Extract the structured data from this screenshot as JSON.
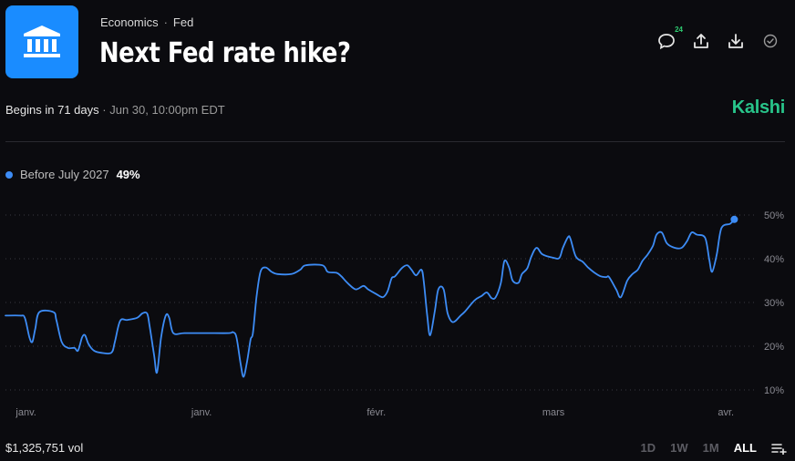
{
  "header": {
    "category": "Economics",
    "separator": "·",
    "subcategory": "Fed",
    "title": "Next Fed rate hike?",
    "comment_count": "24"
  },
  "meta": {
    "begins": "Begins in 71 days",
    "dot": "·",
    "date": "Jun 30, 10:00pm EDT"
  },
  "brand": "Kalshi",
  "legend": {
    "name": "Before July 2027",
    "value": "49%"
  },
  "footer": {
    "volume": "$1,325,751 vol",
    "ranges": [
      "1D",
      "1W",
      "1M",
      "ALL"
    ],
    "active_range": "ALL"
  },
  "colors": {
    "series": "#3d8cf5",
    "brand": "#28c48a",
    "logo_bg": "#1a8cff"
  },
  "chart_data": {
    "type": "line",
    "title": "Next Fed rate hike?",
    "series": [
      {
        "name": "Before July 2027",
        "color": "#3d8cf5",
        "last": 49,
        "points": [
          [
            0,
            27
          ],
          [
            2.5,
            27
          ],
          [
            3.3,
            26.5
          ],
          [
            4.1,
            22
          ],
          [
            4.6,
            21
          ],
          [
            5.1,
            24
          ],
          [
            5.8,
            27.8
          ],
          [
            8.2,
            27.8
          ],
          [
            8.7,
            26
          ],
          [
            9.6,
            21
          ],
          [
            10.7,
            19.6
          ],
          [
            11.8,
            19.6
          ],
          [
            12.4,
            19
          ],
          [
            13.1,
            22
          ],
          [
            13.6,
            22.5
          ],
          [
            14.2,
            20.5
          ],
          [
            15.1,
            19
          ],
          [
            16.3,
            18.5
          ],
          [
            18.1,
            18.5
          ],
          [
            18.7,
            21
          ],
          [
            19.6,
            25.8
          ],
          [
            20.8,
            26
          ],
          [
            22.5,
            26.5
          ],
          [
            23.4,
            27.5
          ],
          [
            24.2,
            27.5
          ],
          [
            24.6,
            25
          ],
          [
            25.4,
            18
          ],
          [
            25.9,
            14
          ],
          [
            26.6,
            22
          ],
          [
            27.4,
            27
          ],
          [
            28,
            26.5
          ],
          [
            28.7,
            23
          ],
          [
            30.6,
            23
          ],
          [
            34.3,
            23
          ],
          [
            38.2,
            23
          ],
          [
            38.9,
            23.2
          ],
          [
            39.5,
            22
          ],
          [
            40.2,
            16
          ],
          [
            40.7,
            13
          ],
          [
            41.3,
            16.5
          ],
          [
            41.9,
            21.5
          ],
          [
            42.3,
            23
          ],
          [
            42.9,
            31
          ],
          [
            43.6,
            37
          ],
          [
            44.5,
            38
          ],
          [
            45.5,
            37
          ],
          [
            46.5,
            36.5
          ],
          [
            48.9,
            36.5
          ],
          [
            50.4,
            37.5
          ],
          [
            51.3,
            38.5
          ],
          [
            54.2,
            38.5
          ],
          [
            55.1,
            37
          ],
          [
            56.6,
            36.8
          ],
          [
            57.4,
            36
          ],
          [
            58.6,
            34.3
          ],
          [
            59.9,
            33
          ],
          [
            61.2,
            33.8
          ],
          [
            62,
            33
          ],
          [
            63.3,
            32
          ],
          [
            64.5,
            31.2
          ],
          [
            65.3,
            32.5
          ],
          [
            66,
            35.5
          ],
          [
            66.6,
            36
          ],
          [
            67.8,
            37.9
          ],
          [
            68.7,
            38.5
          ],
          [
            69.4,
            37.5
          ],
          [
            70.2,
            36.2
          ],
          [
            71.1,
            37.5
          ],
          [
            71.5,
            35
          ],
          [
            72.1,
            27
          ],
          [
            72.6,
            22.5
          ],
          [
            73.4,
            28
          ],
          [
            74,
            33
          ],
          [
            74.9,
            33
          ],
          [
            75.6,
            27.5
          ],
          [
            76.5,
            25.5
          ],
          [
            77.8,
            27
          ],
          [
            78.6,
            28
          ],
          [
            80.2,
            30.5
          ],
          [
            81.4,
            31.5
          ],
          [
            82.3,
            32.3
          ],
          [
            83.1,
            31
          ],
          [
            83.8,
            31.2
          ],
          [
            84.7,
            34.5
          ],
          [
            85.3,
            39.5
          ],
          [
            86.1,
            38
          ],
          [
            86.7,
            35
          ],
          [
            87.7,
            34.5
          ],
          [
            88.3,
            36.5
          ],
          [
            89.2,
            37.8
          ],
          [
            89.9,
            40.5
          ],
          [
            90.8,
            42.5
          ],
          [
            91.8,
            41
          ],
          [
            93.7,
            40.2
          ],
          [
            94.7,
            40.2
          ],
          [
            95.3,
            42.5
          ],
          [
            96.2,
            45
          ],
          [
            96.6,
            44.5
          ],
          [
            97.5,
            40.5
          ],
          [
            98.7,
            39.3
          ],
          [
            99.6,
            38
          ],
          [
            100.5,
            37
          ],
          [
            101.7,
            36
          ],
          [
            102.7,
            35.8
          ],
          [
            103.2,
            35.8
          ],
          [
            104.4,
            33
          ],
          [
            105.2,
            31.2
          ],
          [
            106.3,
            35
          ],
          [
            107.2,
            36.5
          ],
          [
            108.1,
            37.5
          ],
          [
            108.9,
            39.5
          ],
          [
            109.8,
            41
          ],
          [
            110.7,
            43
          ],
          [
            111.3,
            45.5
          ],
          [
            112.2,
            46
          ],
          [
            113.1,
            43.5
          ],
          [
            114.4,
            42.5
          ],
          [
            115.6,
            42.5
          ],
          [
            116.5,
            44
          ],
          [
            117.3,
            46
          ],
          [
            118.2,
            45.5
          ],
          [
            119.6,
            44.8
          ],
          [
            120.3,
            40
          ],
          [
            120.8,
            37
          ],
          [
            121.6,
            41
          ],
          [
            122.4,
            47
          ],
          [
            123.9,
            48
          ],
          [
            124.6,
            49
          ]
        ]
      }
    ],
    "x_ticks": [
      {
        "x": 1,
        "label": "janv."
      },
      {
        "x": 31,
        "label": "janv."
      },
      {
        "x": 61,
        "label": "févr."
      },
      {
        "x": 91,
        "label": "mars"
      },
      {
        "x": 121,
        "label": "avr."
      }
    ],
    "y_ticks": [
      {
        "y": 50,
        "label": "50%"
      },
      {
        "y": 40,
        "label": "40%"
      },
      {
        "y": 30,
        "label": "30%"
      },
      {
        "y": 20,
        "label": "20%"
      },
      {
        "y": 10,
        "label": "10%"
      }
    ],
    "xlim": [
      0,
      125
    ],
    "ylim": [
      10,
      50
    ],
    "grid": true
  }
}
